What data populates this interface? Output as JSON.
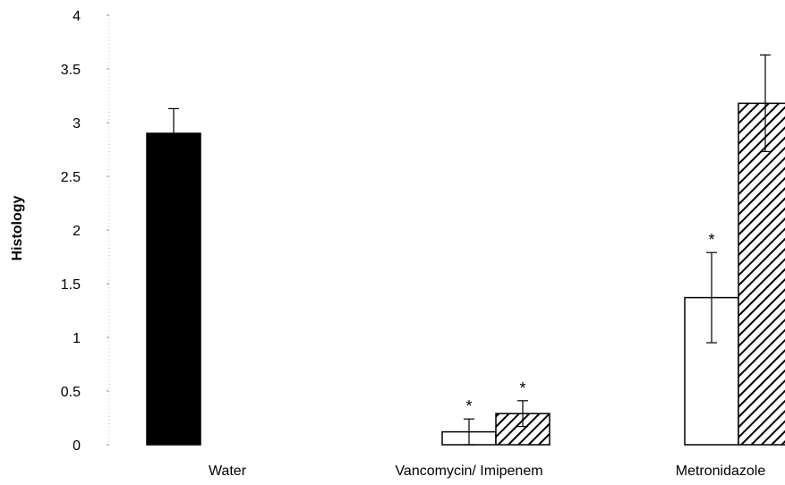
{
  "chart_data": {
    "type": "bar",
    "title": "",
    "xlabel": "",
    "ylabel": "Histology",
    "ylim": [
      0,
      4
    ],
    "yticks": [
      "0",
      "0.5",
      "1",
      "1.5",
      "2",
      "2.5",
      "3",
      "3.5",
      "4"
    ],
    "grid": false,
    "categories": [
      "Water",
      "Vancomycin/ Imipenem",
      "Metronidazole"
    ],
    "bars": [
      {
        "category": "Water",
        "pattern": "solid-black",
        "value": 2.9,
        "error": 0.23,
        "significance": ""
      },
      {
        "category": "Vancomycin/ Imipenem",
        "pattern": "open-white",
        "value": 0.12,
        "error": 0.12,
        "significance": "*"
      },
      {
        "category": "Vancomycin/ Imipenem",
        "pattern": "diagonal-hatch",
        "value": 0.29,
        "error": 0.12,
        "significance": "*"
      },
      {
        "category": "Metronidazole",
        "pattern": "open-white",
        "value": 1.37,
        "error": 0.42,
        "significance": "*"
      },
      {
        "category": "Metronidazole",
        "pattern": "diagonal-hatch",
        "value": 3.18,
        "error": 0.45,
        "significance": ""
      }
    ],
    "colors": {
      "solid": "#000000",
      "open": "#ffffff",
      "hatch": "#000000",
      "axis": "#000000"
    }
  }
}
